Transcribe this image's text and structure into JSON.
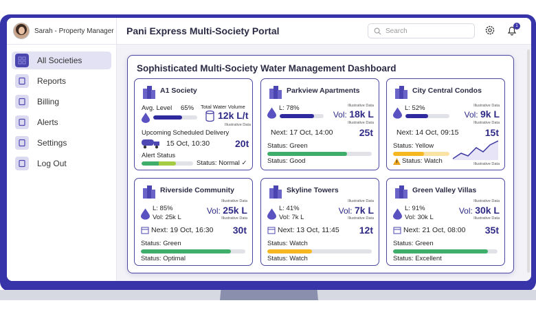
{
  "user": {
    "name": "Sarah - Property Manager"
  },
  "nav": [
    {
      "label": "All Societies",
      "icon": "grid-icon",
      "active": true
    },
    {
      "label": "Reports",
      "icon": "report-icon"
    },
    {
      "label": "Billing",
      "icon": "billing-icon"
    },
    {
      "label": "Alerts",
      "icon": "bell-icon"
    },
    {
      "label": "Settings",
      "icon": "gear-icon"
    },
    {
      "label": "Log Out",
      "icon": "logout-icon"
    }
  ],
  "header": {
    "title": "Pani Express Multi-Society Portal",
    "search_placeholder": "Search",
    "notifications": "1"
  },
  "dashboard": {
    "title": "Sophisticated Multi-Society Water Management Dashboard",
    "a1": {
      "name": "A1 Society",
      "level_label": "Avg. Level",
      "level": "65%",
      "level_pct": 65,
      "vol_label": "Total Water Volume",
      "volume": "12k L/t",
      "note": "Illustrative Data",
      "delivery_label": "Upcoming Scheduled Delivery",
      "delivery": "15 Oct, 10:30",
      "tons": "20t",
      "alert_label": "Alert Status",
      "status": "Status: Normal ✓"
    },
    "cards": [
      {
        "name": "Parkview Apartments",
        "level": "L: 78%",
        "level_pct": 78,
        "vol_prefix": "Vol:",
        "volume": "18k L",
        "note": "Illustrative Data",
        "next": "Next: 17 Oct, 14:00",
        "tons": "25t",
        "status1": "Status: Green",
        "status_pct": 76,
        "color": "#3fae6a",
        "status2": "Status: Good"
      },
      {
        "name": "City Central Condos",
        "level": "L: 52%",
        "level_pct": 52,
        "vol_prefix": "Vol:",
        "volume": "9k L",
        "note": "Illustrative Data",
        "next": "Next: 14 Oct, 09:15",
        "tons": "15t",
        "status1": "Status: Yellow",
        "status_pct": 55,
        "color": "#f5b820",
        "status2": "Status: Watch"
      },
      {
        "name": "Riverside Community",
        "level": "L: 85%",
        "sub": "Vol: 25k L",
        "vol_prefix": "Vol:",
        "volume": "25k L",
        "note": "Illustrative Data",
        "next": "Next: 19 Oct, 16:30",
        "tons": "30t",
        "status1": "Status: Green",
        "status_pct": 86,
        "color": "#3fae6a",
        "status2": "Status: Optimal"
      },
      {
        "name": "Skyline Towers",
        "level": "L: 41%",
        "sub": "Vol: 7k L",
        "vol_prefix": "Vol:",
        "volume": "7k L",
        "note": "Illustrative Data",
        "next": "Next: 13 Oct, 11:45",
        "tons": "12t",
        "status1": "Status: Watch",
        "status_pct": 43,
        "color": "#f5b820",
        "status2": "Status: Watch"
      },
      {
        "name": "Green Valley Villas",
        "level": "L: 91%",
        "sub": "Vol: 30k L",
        "vol_prefix": "Vol:",
        "volume": "30k L",
        "note": "Illustrative Data",
        "next": "Next: 21 Oct, 08:00",
        "tons": "35t",
        "status1": "Status: Green",
        "status_pct": 91,
        "color": "#3fae6a",
        "status2": "Status: Excellent"
      }
    ]
  }
}
